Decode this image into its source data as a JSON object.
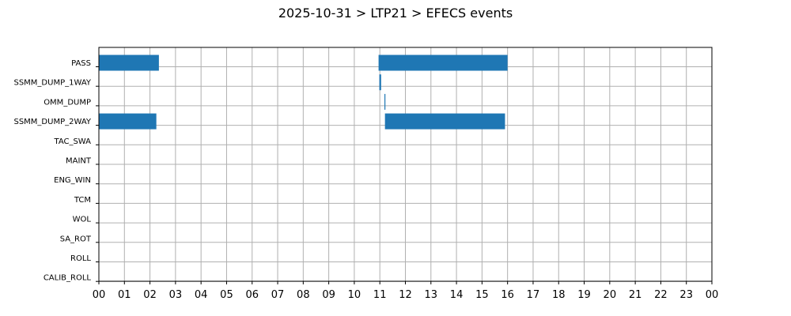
{
  "chart_data": {
    "type": "bar",
    "orientation": "horizontal-timeline",
    "title": "2025-10-31 > LTP21 > EFECS events",
    "xlabel": "",
    "ylabel": "",
    "x_unit": "hour of day",
    "xlim": [
      0,
      24
    ],
    "x_ticks": [
      "00",
      "01",
      "02",
      "03",
      "04",
      "05",
      "06",
      "07",
      "08",
      "09",
      "10",
      "11",
      "12",
      "13",
      "14",
      "15",
      "16",
      "17",
      "18",
      "19",
      "20",
      "21",
      "22",
      "23",
      "00"
    ],
    "categories": [
      "PASS",
      "SSMM_DUMP_1WAY",
      "OMM_DUMP",
      "SSMM_DUMP_2WAY",
      "TAC_SWA",
      "MAINT",
      "ENG_WIN",
      "TCM",
      "WOL",
      "SA_ROT",
      "ROLL",
      "CALIB_ROLL"
    ],
    "grid": true,
    "legend": "none",
    "bar_color": "#1f77b4",
    "events": [
      {
        "category": "PASS",
        "start": 0.0,
        "end": 2.35
      },
      {
        "category": "PASS",
        "start": 10.95,
        "end": 16.0
      },
      {
        "category": "SSMM_DUMP_1WAY",
        "start": 10.98,
        "end": 11.05
      },
      {
        "category": "OMM_DUMP",
        "start": 11.18,
        "end": 11.21
      },
      {
        "category": "SSMM_DUMP_2WAY",
        "start": 0.0,
        "end": 2.25
      },
      {
        "category": "SSMM_DUMP_2WAY",
        "start": 11.2,
        "end": 15.9
      }
    ]
  }
}
